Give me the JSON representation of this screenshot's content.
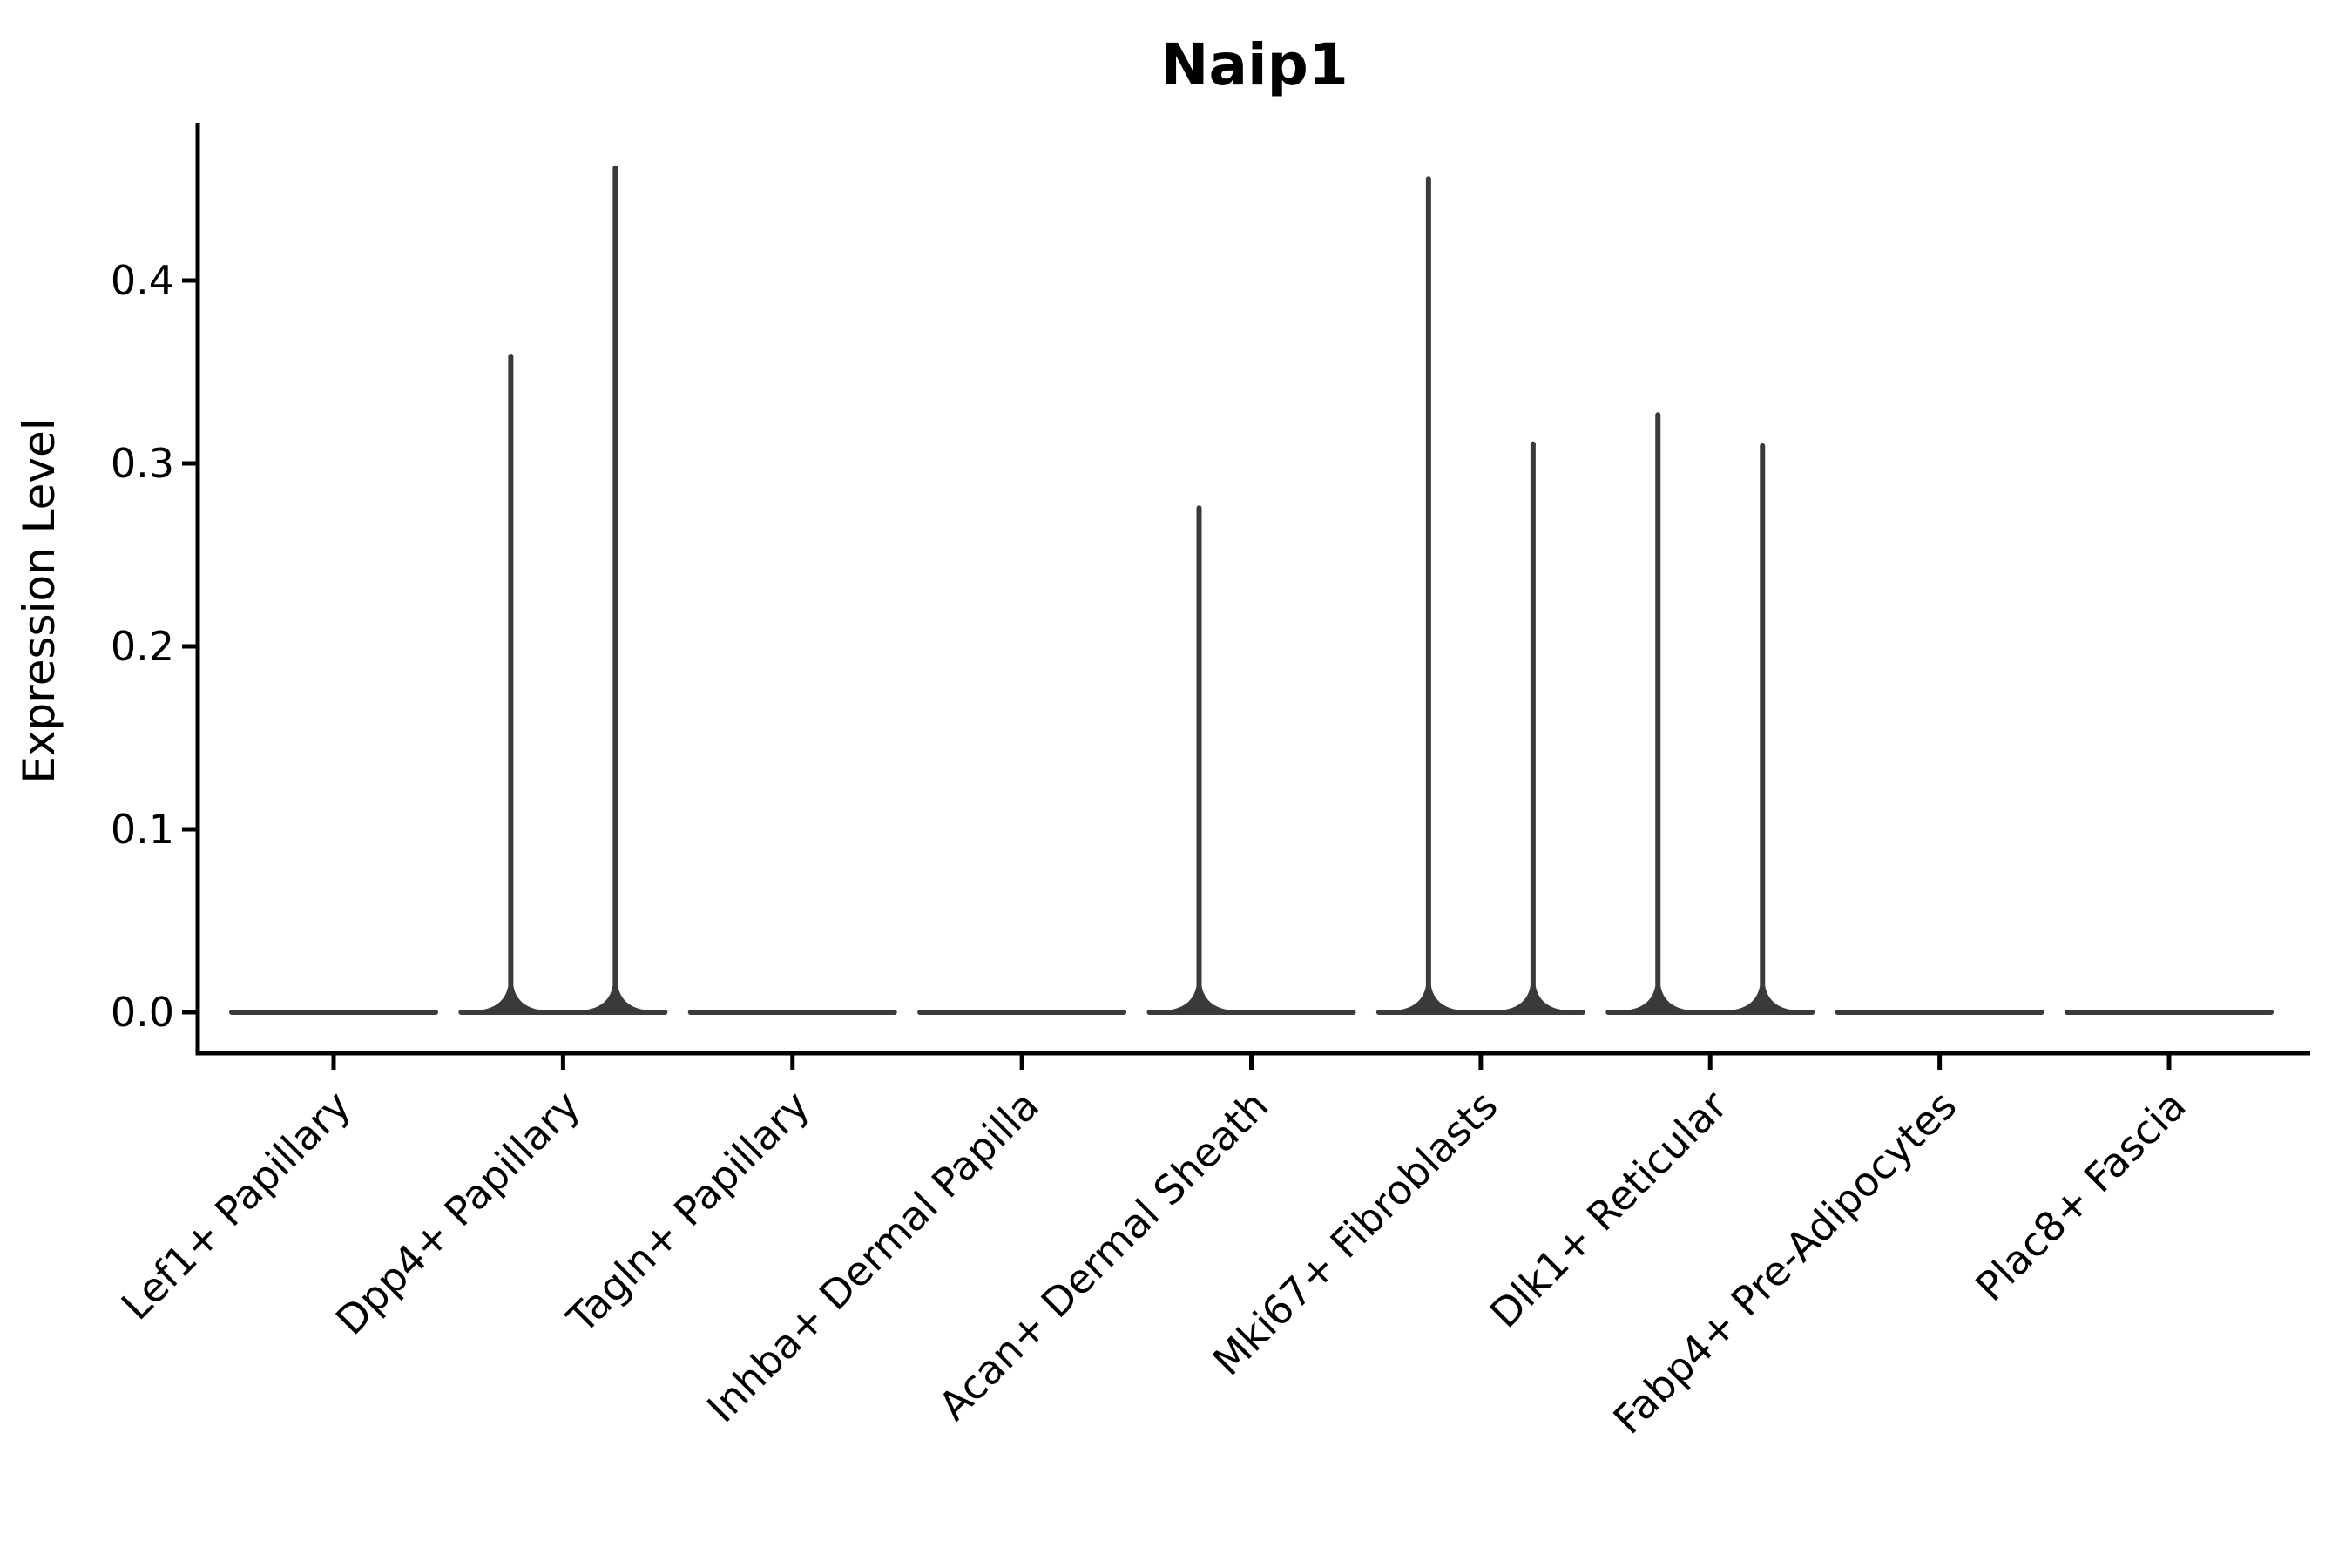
{
  "chart_data": {
    "type": "violin",
    "title": "Naip1",
    "xlabel": "",
    "ylabel": "Expression Level",
    "categories": [
      "Lef1+ Papillary",
      "Dpp4+ Papillary",
      "Tagln+ Papillary",
      "Inhba+ Dermal Papilla",
      "Acan+ Dermal Sheath",
      "Mki67+ Fibroblasts",
      "Dlk1+ Reticular",
      "Fabp4+ Pre-Adipocytes",
      "Plac8+ Fascia"
    ],
    "y_ticks": [
      0.0,
      0.1,
      0.2,
      0.3,
      0.4
    ],
    "y_tick_labels": [
      "0.0",
      "0.1",
      "0.2",
      "0.3",
      "0.4"
    ],
    "ylim": [
      -0.022,
      0.486
    ],
    "grid": false,
    "legend": "none",
    "x_tick_rotation": 45,
    "violin_note": "two narrow violins per category; nearly all mass at 0 with a thin spike up to max expression",
    "series": [
      {
        "name": "violin-left",
        "max_values": [
          0,
          0.36,
          0,
          0,
          0.277,
          0.457,
          0.328,
          0,
          0
        ]
      },
      {
        "name": "violin-right",
        "max_values": [
          0,
          0.463,
          0,
          0,
          0,
          0.312,
          0.311,
          0,
          0
        ]
      }
    ]
  },
  "style": {
    "violin_color": "#3a3a3a",
    "axis_color": "#000000",
    "background": "#ffffff"
  }
}
